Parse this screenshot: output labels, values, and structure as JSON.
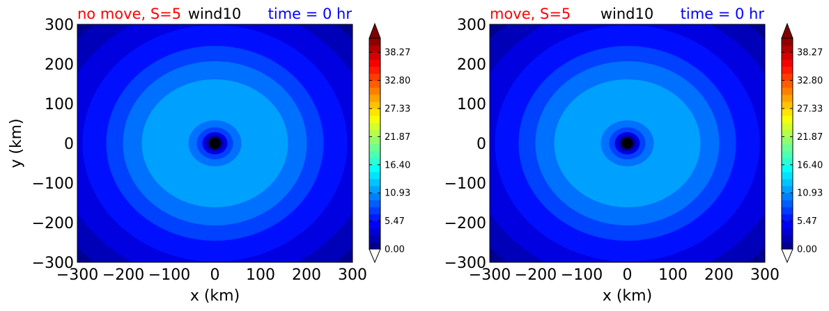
{
  "chart_data": [
    {
      "type": "contour",
      "title_left": "no move, S=5",
      "title_center": "wind10",
      "title_right": "time = 0 hr",
      "title_left_color": "#ff0000",
      "title_center_color": "#000000",
      "title_right_color": "#0000ff",
      "xlabel": "x (km)",
      "ylabel": "y (km)",
      "xlim": [
        -300,
        300
      ],
      "ylim": [
        -300,
        300
      ],
      "xticks": [
        "−300",
        "−200",
        "−100",
        "0",
        "100",
        "200",
        "300"
      ],
      "yticks": [
        "300",
        "200",
        "100",
        "0",
        "−100",
        "−200",
        "−300"
      ],
      "colorbar": {
        "ticks": [
          "0.00",
          "5.47",
          "10.93",
          "16.40",
          "21.87",
          "27.33",
          "32.80",
          "38.27"
        ],
        "range": [
          0,
          41.0
        ],
        "colormap": "jet",
        "extend": "both"
      },
      "center_marker": {
        "x": 0,
        "y": 0,
        "color": "#000000"
      }
    },
    {
      "type": "contour",
      "title_left": "move, S=5",
      "title_center": "wind10",
      "title_right": "time = 0 hr",
      "title_left_color": "#ff0000",
      "title_center_color": "#000000",
      "title_right_color": "#0000ff",
      "xlabel": "x (km)",
      "ylabel": "",
      "xlim": [
        -300,
        300
      ],
      "ylim": [
        -300,
        300
      ],
      "xticks": [
        "−300",
        "−200",
        "−100",
        "0",
        "100",
        "200",
        "300"
      ],
      "yticks": [
        "300",
        "200",
        "100",
        "0",
        "−100",
        "−200",
        "−300"
      ],
      "colorbar": {
        "ticks": [
          "0.00",
          "5.47",
          "10.93",
          "16.40",
          "21.87",
          "27.33",
          "32.80",
          "38.27"
        ],
        "range": [
          0,
          41.0
        ],
        "colormap": "jet",
        "extend": "both"
      },
      "center_marker": {
        "x": 0,
        "y": 0,
        "color": "#000000"
      }
    }
  ]
}
